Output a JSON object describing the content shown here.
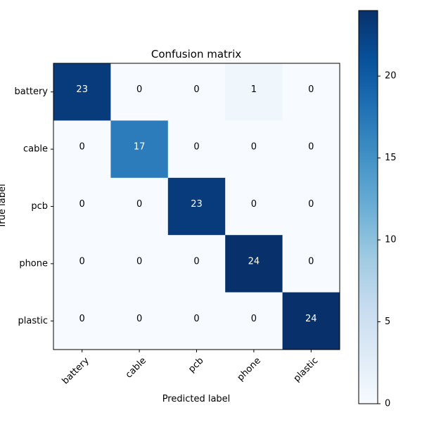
{
  "chart_data": {
    "type": "heatmap",
    "title": "Confusion matrix",
    "xlabel": "Predicted label",
    "ylabel": "True label",
    "x_categories": [
      "battery",
      "cable",
      "pcb",
      "phone",
      "plastic"
    ],
    "y_categories": [
      "battery",
      "cable",
      "pcb",
      "phone",
      "plastic"
    ],
    "values": [
      [
        23,
        0,
        0,
        1,
        0
      ],
      [
        0,
        17,
        0,
        0,
        0
      ],
      [
        0,
        0,
        23,
        0,
        0
      ],
      [
        0,
        0,
        0,
        24,
        0
      ],
      [
        0,
        0,
        0,
        0,
        24
      ]
    ],
    "colormap": "Blues",
    "colorbar": {
      "min": 0,
      "max": 24,
      "ticks": [
        0,
        5,
        10,
        15,
        20
      ]
    },
    "colors": {
      "text_light": "#ffffff",
      "text_dark": "#000000",
      "axis": "#000000"
    }
  }
}
